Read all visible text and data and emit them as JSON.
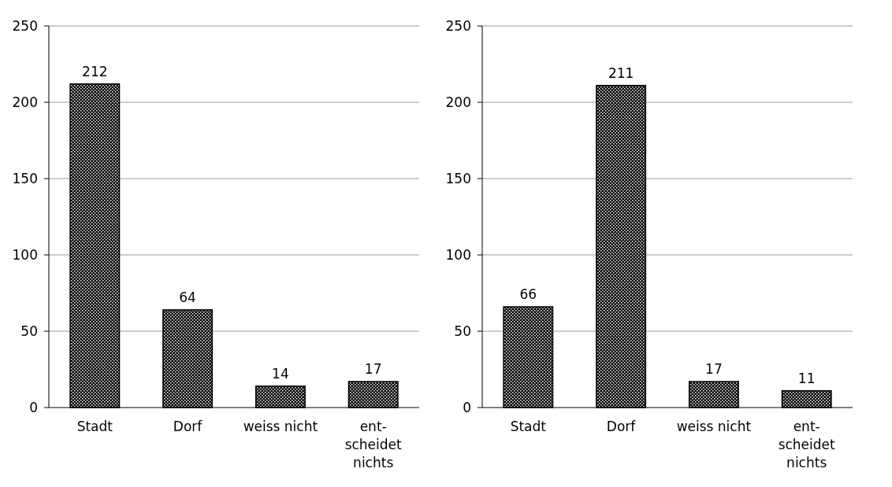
{
  "chart_data": [
    {
      "type": "bar",
      "categories": [
        "Stadt",
        "Dorf",
        "weiss nicht",
        "ent-\nscheidet\nnichts"
      ],
      "values": [
        212,
        64,
        14,
        17
      ],
      "color": "#000000",
      "ylim": [
        0,
        250
      ],
      "yticks": [
        0,
        50,
        100,
        150,
        200,
        250
      ],
      "grid": "y",
      "data_labels": true
    },
    {
      "type": "bar",
      "categories": [
        "Stadt",
        "Dorf",
        "weiss nicht",
        "ent-\nscheidet\nnichts"
      ],
      "values": [
        66,
        211,
        17,
        11
      ],
      "color": "#000000",
      "ylim": [
        0,
        250
      ],
      "yticks": [
        0,
        50,
        100,
        150,
        200,
        250
      ],
      "grid": "y",
      "data_labels": true
    }
  ]
}
